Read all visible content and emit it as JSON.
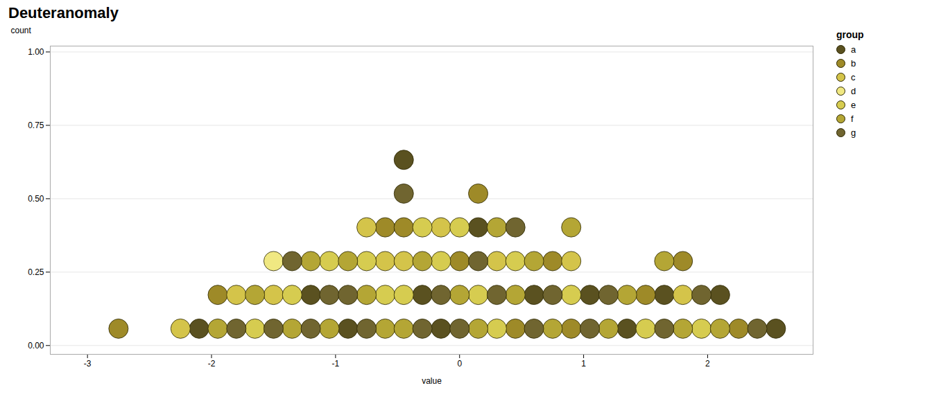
{
  "chart_data": {
    "type": "scatter",
    "title": "Deuteranomaly",
    "x_label": "value",
    "y_label": "count",
    "xlim": [
      -3.3,
      2.85
    ],
    "ylim": [
      -0.03,
      1.02
    ],
    "xticks": [
      -3,
      -2,
      -1,
      0,
      1,
      2
    ],
    "yticks": [
      {
        "value": 0,
        "label": "0.00"
      },
      {
        "value": 0.25,
        "label": "0.25"
      },
      {
        "value": 0.5,
        "label": "0.50"
      },
      {
        "value": 0.75,
        "label": "0.75"
      },
      {
        "value": 1,
        "label": "1.00"
      }
    ],
    "grid": "y",
    "legend": "upper right",
    "legend_title": "group",
    "series": [
      {
        "name": "a",
        "color": "#5a5120",
        "x": [
          -2.1,
          -1.2,
          -0.9,
          -0.45,
          -0.3,
          -0.15,
          0.15,
          0.6,
          1.05,
          1.35,
          1.65,
          2.1,
          2.55
        ],
        "values": [
          0.0575,
          0.1725,
          0.0575,
          0.6325,
          0.1725,
          0.0575,
          0.4025,
          0.1725,
          0.1725,
          0.0575,
          0.1725,
          0.1725,
          0.0575
        ]
      },
      {
        "name": "b",
        "color": "#9e8a28",
        "x": [
          -2.75,
          -1.95,
          -0.6,
          -0.45,
          0.0,
          0.15,
          0.45,
          0.75,
          0.9,
          1.5,
          1.8,
          2.25
        ],
        "values": [
          0.0575,
          0.1725,
          0.4025,
          0.4025,
          0.2875,
          0.5175,
          0.0575,
          0.2875,
          0.0575,
          0.1725,
          0.2875,
          0.0575
        ]
      },
      {
        "name": "c",
        "color": "#d4c44a",
        "x": [
          -2.25,
          -1.8,
          -1.5,
          -0.75,
          -0.6,
          -0.45,
          -0.15,
          0.3,
          0.9,
          1.8
        ],
        "values": [
          0.0575,
          0.1725,
          0.1725,
          0.4025,
          0.2875,
          0.2875,
          0.4025,
          0.2875,
          0.2875,
          0.1725
        ]
      },
      {
        "name": "d",
        "color": "#f0e882",
        "x": [
          -1.5
        ],
        "values": [
          0.2875
        ]
      },
      {
        "name": "e",
        "color": "#d6cc50",
        "x": [
          -1.65,
          -1.35,
          -1.05,
          -0.75,
          -0.6,
          -0.45,
          -0.3,
          -0.15,
          0.0,
          0.15,
          0.3,
          0.45,
          0.9,
          1.5,
          1.95
        ],
        "values": [
          0.0575,
          0.1725,
          0.2875,
          0.2875,
          0.1725,
          0.1725,
          0.4025,
          0.2875,
          0.4025,
          0.1725,
          0.0575,
          0.2875,
          0.1725,
          0.0575,
          0.0575
        ]
      },
      {
        "name": "f",
        "color": "#b4a635",
        "x": [
          -1.95,
          -1.65,
          -1.35,
          -1.2,
          -1.05,
          -0.9,
          -0.75,
          -0.6,
          -0.45,
          -0.3,
          0.0,
          0.15,
          0.3,
          0.45,
          0.6,
          0.75,
          0.9,
          1.2,
          1.35,
          1.65,
          1.8,
          2.1
        ],
        "values": [
          0.0575,
          0.1725,
          0.0575,
          0.2875,
          0.0575,
          0.2875,
          0.1725,
          0.0575,
          0.0575,
          0.2875,
          0.1725,
          0.0575,
          0.4025,
          0.1725,
          0.2875,
          0.0575,
          0.4025,
          0.0575,
          0.1725,
          0.2875,
          0.0575,
          0.0575
        ]
      },
      {
        "name": "g",
        "color": "#706530",
        "x": [
          -1.8,
          -1.5,
          -1.35,
          -1.2,
          -1.05,
          -0.9,
          -0.75,
          -0.45,
          -0.3,
          -0.15,
          0.0,
          0.15,
          0.3,
          0.45,
          0.6,
          0.75,
          1.05,
          1.2,
          1.65,
          1.95,
          2.4
        ],
        "values": [
          0.0575,
          0.0575,
          0.2875,
          0.0575,
          0.1725,
          0.1725,
          0.0575,
          0.5175,
          0.0575,
          0.1725,
          0.0575,
          0.2875,
          0.1725,
          0.4025,
          0.0575,
          0.1725,
          0.0575,
          0.1725,
          0.0575,
          0.1725,
          0.0575
        ]
      }
    ]
  }
}
